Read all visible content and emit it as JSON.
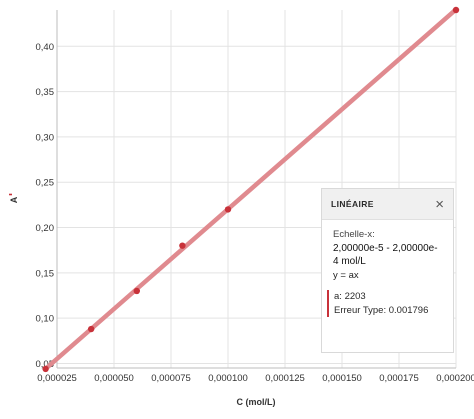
{
  "chart_data": {
    "type": "scatter",
    "xlabel": "C (mol/L)",
    "ylabel": "A",
    "xlim": [
      2.5e-05,
      0.0002
    ],
    "ylim": [
      0.045,
      0.44
    ],
    "x_ticks": [
      "0,000025",
      "0,000050",
      "0,000075",
      "0,000100",
      "0,000125",
      "0,000150",
      "0,000175",
      "0,000200"
    ],
    "y_ticks": [
      "0,05",
      "0,10",
      "0,15",
      "0,20",
      "0,25",
      "0,30",
      "0,35",
      "0,40"
    ],
    "x_tick_values": [
      2.5e-05,
      5e-05,
      7.5e-05,
      0.0001,
      0.000125,
      0.00015,
      0.000175,
      0.0002
    ],
    "y_tick_values": [
      0.05,
      0.1,
      0.15,
      0.2,
      0.25,
      0.3,
      0.35,
      0.4
    ],
    "series": [
      {
        "x": [
          2e-05,
          4e-05,
          6e-05,
          8e-05,
          0.0001,
          0.0002
        ],
        "y": [
          0.044,
          0.088,
          0.13,
          0.18,
          0.22,
          0.44
        ]
      }
    ],
    "fit": {
      "type": "linear",
      "slope": 2203
    },
    "grid": true,
    "colors": {
      "points": "#c8323a",
      "fit_line": "#e08a8f",
      "grid": "#e3e3e3",
      "axis": "#bdbdbd"
    }
  },
  "fit_panel": {
    "title": "LINÉAIRE",
    "close_glyph": "×",
    "scale_label": "Echelle-x:",
    "scale_range": "2,00000e-5 - 2,00000e-4 mol/L",
    "equation": "y = ax",
    "a_label": "a:",
    "a_value": "2203",
    "error_label": "Erreur Type:",
    "error_value": "0.001796"
  }
}
